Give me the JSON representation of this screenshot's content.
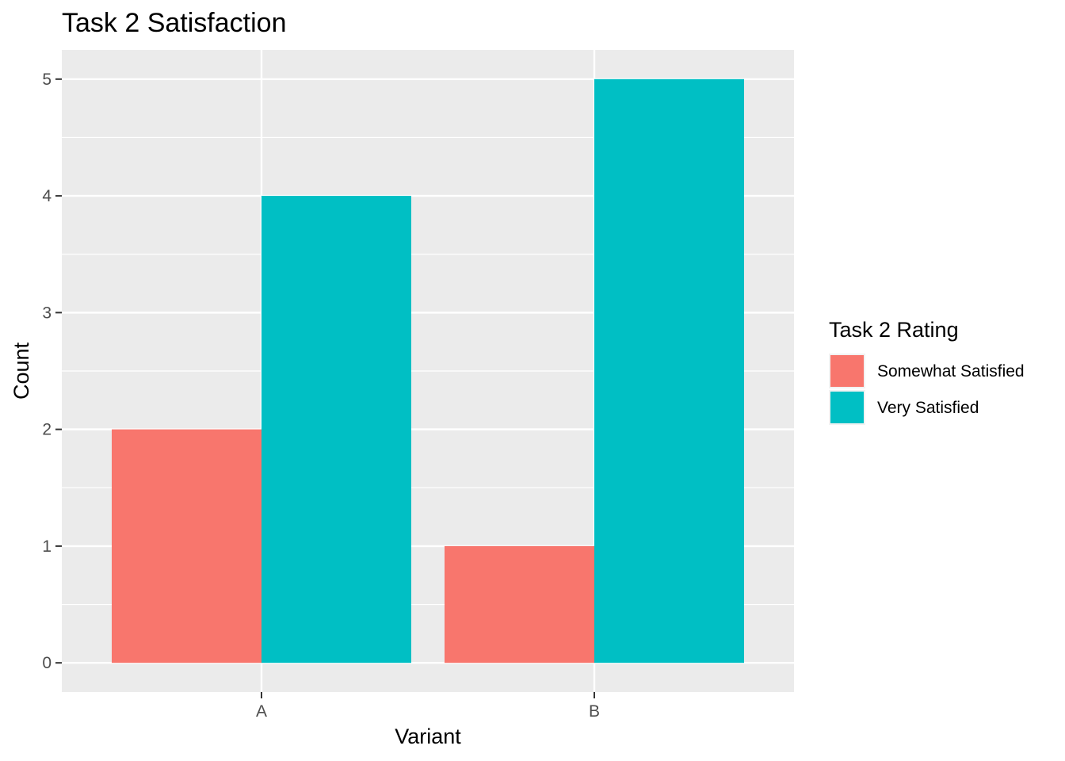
{
  "chart_data": {
    "type": "bar",
    "title": "Task 2 Satisfaction",
    "xlabel": "Variant",
    "ylabel": "Count",
    "categories": [
      "A",
      "B"
    ],
    "ylim": [
      -0.25,
      5.25
    ],
    "yticks": [
      0,
      1,
      2,
      3,
      4,
      5
    ],
    "grid": true,
    "legend": {
      "title": "Task 2 Rating",
      "position": "right"
    },
    "series": [
      {
        "name": "Somewhat Satisfied",
        "color": "#F8766D",
        "values": [
          2,
          1
        ]
      },
      {
        "name": "Very Satisfied",
        "color": "#00BFC4",
        "values": [
          4,
          5
        ]
      }
    ]
  }
}
